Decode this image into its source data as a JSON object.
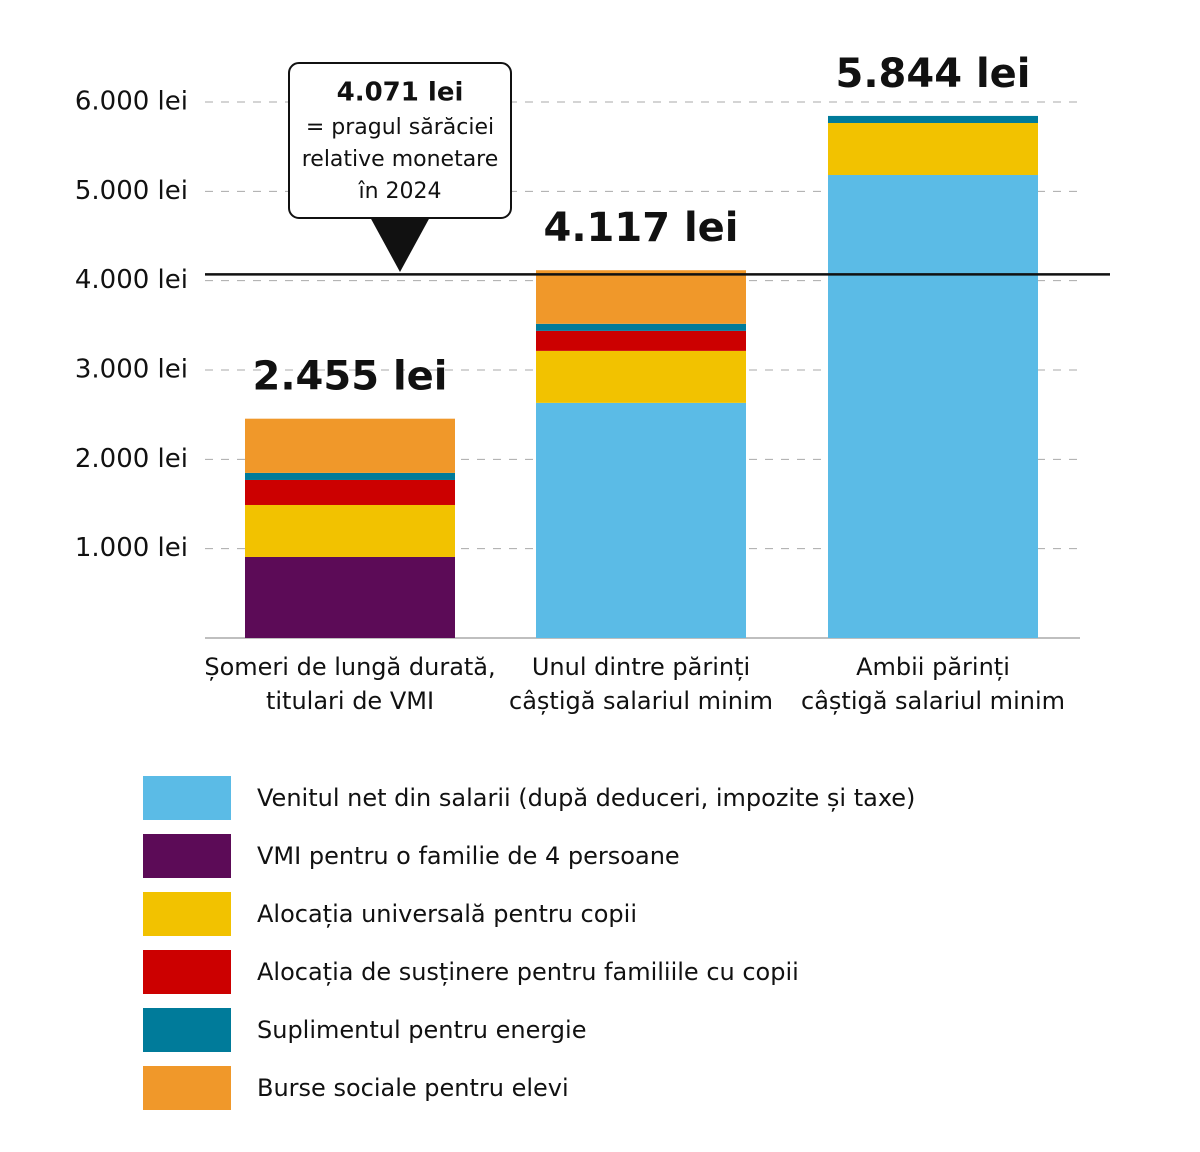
{
  "chart_data": {
    "type": "stacked-bar",
    "categories": [
      [
        "Șomeri de lungă durată,",
        "titulari de VMI"
      ],
      [
        "Unul dintre părinți",
        "câștigă salariul minim"
      ],
      [
        "Ambii părinți",
        "câștigă salariul minim"
      ]
    ],
    "series": [
      {
        "name": "Venitul net din salarii (după deduceri, impozite și taxe)",
        "color": "#5bbbe6",
        "values": [
          0,
          2632,
          5183
        ]
      },
      {
        "name": "VMI pentru o familie de 4 persoane",
        "color": "#5c0b57",
        "values": [
          907,
          0,
          0
        ]
      },
      {
        "name": "Alocația universală pentru copii",
        "color": "#f2c200",
        "values": [
          582,
          582,
          582
        ]
      },
      {
        "name": "Alocația de susținere pentru familiile cu copii",
        "color": "#cc0000",
        "values": [
          280,
          224,
          0
        ]
      },
      {
        "name": "Suplimentul pentru energie",
        "color": "#007b9a",
        "values": [
          79,
          79,
          79
        ]
      },
      {
        "name": "Burse sociale pentru elevi",
        "color": "#f0982a",
        "values": [
          607,
          600,
          0
        ]
      }
    ],
    "totals": [
      2455,
      4117,
      5844
    ],
    "total_labels": [
      "2.455 lei",
      "4.117 lei",
      "5.844 lei"
    ],
    "threshold": {
      "value": 4071,
      "label": "4.071 lei",
      "text": [
        "= pragul sărăciei",
        "relative monetare",
        "în 2024"
      ]
    },
    "ylim": [
      0,
      6000
    ],
    "yticks": [
      {
        "value": 1000,
        "label": "1.000 lei"
      },
      {
        "value": 2000,
        "label": "2.000 lei"
      },
      {
        "value": 3000,
        "label": "3.000 lei"
      },
      {
        "value": 4000,
        "label": "4.000 lei"
      },
      {
        "value": 5000,
        "label": "5.000 lei"
      },
      {
        "value": 6000,
        "label": "6.000 lei"
      }
    ],
    "grid": true
  }
}
